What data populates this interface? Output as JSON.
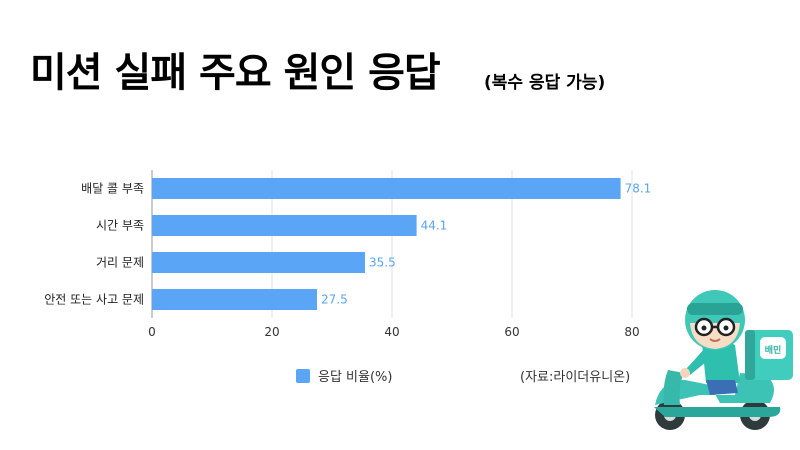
{
  "title": "미션 실패 주요 원인 응답",
  "subtitle": "(복수 응답 가능)",
  "colors": {
    "bar": "#5aa5f5",
    "value_label": "#5aa5f5",
    "axis": "#999999",
    "grid": "#e3e3e3"
  },
  "chart_data": {
    "type": "bar",
    "orientation": "horizontal",
    "categories": [
      "배달 콜 부족",
      "시간 부족",
      "거리 문제",
      "안전 또는 사고 문제"
    ],
    "series": [
      {
        "name": "응답 비율(%)",
        "values": [
          78.1,
          44.1,
          35.5,
          27.5
        ]
      }
    ],
    "xlim": [
      0,
      80
    ],
    "xticks": [
      "0",
      "20",
      "40",
      "60",
      "80"
    ],
    "grid": true,
    "legend": "bottom"
  },
  "legend_label": "응답 비율(%)",
  "source": "(자료:라이더유니온)",
  "illustration": {
    "box_label": "배민"
  }
}
